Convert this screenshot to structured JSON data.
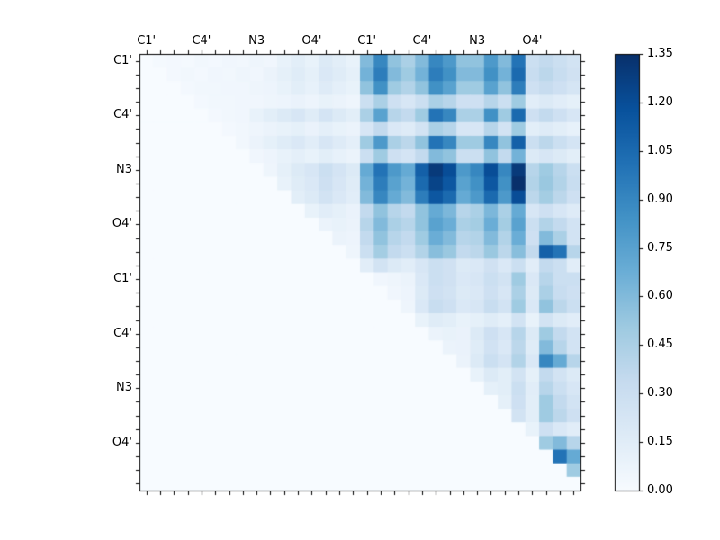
{
  "figure": {
    "background": "#ffffff",
    "border_color": "#000000"
  },
  "chart_data": {
    "type": "heatmap",
    "title": "",
    "xlabel": "",
    "ylabel": "",
    "x_axis_side": "top",
    "y_axis_side": "left",
    "n_rows": 32,
    "n_cols": 32,
    "x_tick_labels": [
      "C1'",
      "C4'",
      "N3",
      "O4'",
      "C1'",
      "C4'",
      "N3",
      "O4'"
    ],
    "y_tick_labels": [
      "C1'",
      "C4'",
      "N3",
      "O4'",
      "C1'",
      "C4'",
      "N3",
      "O4'"
    ],
    "labeled_cells": [
      0,
      4,
      8,
      12,
      16,
      20,
      24,
      28
    ],
    "vmin": 0,
    "vmax": 1.35,
    "colormap": {
      "name": "Blues",
      "stops": [
        [
          0.0,
          "#f7fbff"
        ],
        [
          0.125,
          "#deebf7"
        ],
        [
          0.25,
          "#c6dbef"
        ],
        [
          0.375,
          "#9ecae1"
        ],
        [
          0.5,
          "#6baed6"
        ],
        [
          0.625,
          "#4292c6"
        ],
        [
          0.75,
          "#2171b5"
        ],
        [
          0.875,
          "#08519c"
        ],
        [
          1.0,
          "#08306b"
        ]
      ]
    },
    "colorbar": {
      "tick_values": [
        0,
        0.15,
        0.3,
        0.45,
        0.6,
        0.75,
        0.9,
        1.05,
        1.2,
        1.35
      ],
      "tick_labels": [
        "0.00",
        "0.15",
        "0.30",
        "0.45",
        "0.60",
        "0.75",
        "0.90",
        "1.05",
        "1.20",
        "1.35"
      ]
    },
    "matrix": [
      [
        0,
        0.02,
        0.03,
        0.02,
        0.04,
        0.03,
        0.05,
        0.04,
        0.06,
        0.05,
        0.1,
        0.14,
        0.1,
        0.18,
        0.14,
        0.1,
        0.6,
        0.9,
        0.55,
        0.45,
        0.6,
        0.9,
        0.8,
        0.55,
        0.55,
        0.8,
        0.6,
        1.0,
        0.3,
        0.35,
        0.3,
        0.25
      ],
      [
        0,
        0,
        0.03,
        0.04,
        0.03,
        0.05,
        0.04,
        0.06,
        0.05,
        0.08,
        0.12,
        0.16,
        0.12,
        0.2,
        0.16,
        0.12,
        0.65,
        0.95,
        0.6,
        0.5,
        0.65,
        0.95,
        0.85,
        0.6,
        0.6,
        0.85,
        0.65,
        1.05,
        0.32,
        0.38,
        0.32,
        0.27
      ],
      [
        0,
        0,
        0,
        0.03,
        0.04,
        0.04,
        0.05,
        0.05,
        0.06,
        0.07,
        0.1,
        0.14,
        0.11,
        0.17,
        0.13,
        0.1,
        0.55,
        0.85,
        0.5,
        0.42,
        0.55,
        0.85,
        0.75,
        0.5,
        0.5,
        0.75,
        0.55,
        0.95,
        0.28,
        0.33,
        0.28,
        0.23
      ],
      [
        0,
        0,
        0,
        0,
        0.03,
        0.04,
        0.04,
        0.05,
        0.05,
        0.06,
        0.07,
        0.09,
        0.07,
        0.1,
        0.08,
        0.06,
        0.3,
        0.45,
        0.28,
        0.22,
        0.3,
        0.45,
        0.4,
        0.28,
        0.28,
        0.4,
        0.3,
        0.5,
        0.15,
        0.18,
        0.15,
        0.12
      ],
      [
        0,
        0,
        0,
        0,
        0,
        0.03,
        0.04,
        0.05,
        0.1,
        0.14,
        0.18,
        0.22,
        0.16,
        0.24,
        0.18,
        0.14,
        0.45,
        0.75,
        0.4,
        0.35,
        0.5,
        1.0,
        0.9,
        0.45,
        0.45,
        0.85,
        0.5,
        1.05,
        0.28,
        0.35,
        0.28,
        0.22
      ],
      [
        0,
        0,
        0,
        0,
        0,
        0,
        0.03,
        0.04,
        0.06,
        0.08,
        0.1,
        0.12,
        0.09,
        0.13,
        0.1,
        0.08,
        0.22,
        0.35,
        0.2,
        0.17,
        0.25,
        0.45,
        0.4,
        0.22,
        0.22,
        0.4,
        0.25,
        0.5,
        0.14,
        0.17,
        0.14,
        0.11
      ],
      [
        0,
        0,
        0,
        0,
        0,
        0,
        0,
        0.04,
        0.08,
        0.12,
        0.16,
        0.2,
        0.15,
        0.22,
        0.17,
        0.13,
        0.5,
        0.8,
        0.45,
        0.38,
        0.55,
        1.0,
        0.9,
        0.5,
        0.5,
        0.9,
        0.55,
        1.1,
        0.3,
        0.38,
        0.3,
        0.24
      ],
      [
        0,
        0,
        0,
        0,
        0,
        0,
        0,
        0,
        0.05,
        0.07,
        0.1,
        0.13,
        0.1,
        0.14,
        0.11,
        0.08,
        0.3,
        0.5,
        0.28,
        0.24,
        0.35,
        0.6,
        0.55,
        0.3,
        0.3,
        0.55,
        0.35,
        0.65,
        0.18,
        0.22,
        0.18,
        0.14
      ],
      [
        0,
        0,
        0,
        0,
        0,
        0,
        0,
        0,
        0,
        0.06,
        0.12,
        0.18,
        0.22,
        0.3,
        0.24,
        0.18,
        0.7,
        1.0,
        0.8,
        0.7,
        1.1,
        1.3,
        1.2,
        0.8,
        0.9,
        1.2,
        0.9,
        1.3,
        0.4,
        0.5,
        0.4,
        0.3
      ],
      [
        0,
        0,
        0,
        0,
        0,
        0,
        0,
        0,
        0,
        0,
        0.1,
        0.16,
        0.2,
        0.28,
        0.22,
        0.16,
        0.65,
        0.95,
        0.75,
        0.65,
        1.05,
        1.25,
        1.15,
        0.75,
        0.85,
        1.15,
        0.85,
        1.35,
        0.42,
        0.52,
        0.42,
        0.32
      ],
      [
        0,
        0,
        0,
        0,
        0,
        0,
        0,
        0,
        0,
        0,
        0,
        0.14,
        0.18,
        0.25,
        0.2,
        0.15,
        0.6,
        0.9,
        0.7,
        0.6,
        0.95,
        1.15,
        1.05,
        0.7,
        0.8,
        1.05,
        0.8,
        1.2,
        0.38,
        0.48,
        0.38,
        0.28
      ],
      [
        0,
        0,
        0,
        0,
        0,
        0,
        0,
        0,
        0,
        0,
        0,
        0,
        0.1,
        0.15,
        0.12,
        0.09,
        0.35,
        0.55,
        0.4,
        0.35,
        0.55,
        0.7,
        0.62,
        0.4,
        0.45,
        0.62,
        0.45,
        0.7,
        0.22,
        0.28,
        0.22,
        0.17
      ],
      [
        0,
        0,
        0,
        0,
        0,
        0,
        0,
        0,
        0,
        0,
        0,
        0,
        0,
        0.08,
        0.1,
        0.08,
        0.4,
        0.6,
        0.45,
        0.4,
        0.55,
        0.75,
        0.68,
        0.45,
        0.48,
        0.68,
        0.48,
        0.75,
        0.3,
        0.42,
        0.35,
        0.25
      ],
      [
        0,
        0,
        0,
        0,
        0,
        0,
        0,
        0,
        0,
        0,
        0,
        0,
        0,
        0,
        0.08,
        0.07,
        0.35,
        0.55,
        0.4,
        0.35,
        0.5,
        0.68,
        0.6,
        0.4,
        0.42,
        0.6,
        0.42,
        0.68,
        0.28,
        0.6,
        0.45,
        0.25
      ],
      [
        0,
        0,
        0,
        0,
        0,
        0,
        0,
        0,
        0,
        0,
        0,
        0,
        0,
        0,
        0,
        0.06,
        0.3,
        0.48,
        0.35,
        0.3,
        0.42,
        0.58,
        0.52,
        0.35,
        0.38,
        0.52,
        0.38,
        0.58,
        0.35,
        1.1,
        1.0,
        0.4
      ],
      [
        0,
        0,
        0,
        0,
        0,
        0,
        0,
        0,
        0,
        0,
        0,
        0,
        0,
        0,
        0,
        0,
        0.15,
        0.25,
        0.18,
        0.15,
        0.22,
        0.3,
        0.27,
        0.18,
        0.2,
        0.27,
        0.2,
        0.3,
        0.15,
        0.35,
        0.3,
        0.15
      ],
      [
        0,
        0,
        0,
        0,
        0,
        0,
        0,
        0,
        0,
        0,
        0,
        0,
        0,
        0,
        0,
        0,
        0,
        0.05,
        0.06,
        0.08,
        0.2,
        0.3,
        0.27,
        0.2,
        0.22,
        0.3,
        0.25,
        0.5,
        0.2,
        0.4,
        0.3,
        0.3
      ],
      [
        0,
        0,
        0,
        0,
        0,
        0,
        0,
        0,
        0,
        0,
        0,
        0,
        0,
        0,
        0,
        0,
        0,
        0,
        0.05,
        0.07,
        0.18,
        0.28,
        0.25,
        0.18,
        0.2,
        0.28,
        0.22,
        0.45,
        0.18,
        0.45,
        0.32,
        0.28
      ],
      [
        0,
        0,
        0,
        0,
        0,
        0,
        0,
        0,
        0,
        0,
        0,
        0,
        0,
        0,
        0,
        0,
        0,
        0,
        0,
        0.06,
        0.2,
        0.32,
        0.28,
        0.2,
        0.22,
        0.32,
        0.25,
        0.5,
        0.2,
        0.55,
        0.38,
        0.3
      ],
      [
        0,
        0,
        0,
        0,
        0,
        0,
        0,
        0,
        0,
        0,
        0,
        0,
        0,
        0,
        0,
        0,
        0,
        0,
        0,
        0,
        0.1,
        0.16,
        0.14,
        0.1,
        0.12,
        0.16,
        0.13,
        0.25,
        0.1,
        0.25,
        0.18,
        0.15
      ],
      [
        0,
        0,
        0,
        0,
        0,
        0,
        0,
        0,
        0,
        0,
        0,
        0,
        0,
        0,
        0,
        0,
        0,
        0,
        0,
        0,
        0,
        0.08,
        0.1,
        0.09,
        0.18,
        0.28,
        0.22,
        0.4,
        0.18,
        0.5,
        0.35,
        0.25
      ],
      [
        0,
        0,
        0,
        0,
        0,
        0,
        0,
        0,
        0,
        0,
        0,
        0,
        0,
        0,
        0,
        0,
        0,
        0,
        0,
        0,
        0,
        0,
        0.08,
        0.09,
        0.16,
        0.26,
        0.2,
        0.38,
        0.16,
        0.6,
        0.4,
        0.25
      ],
      [
        0,
        0,
        0,
        0,
        0,
        0,
        0,
        0,
        0,
        0,
        0,
        0,
        0,
        0,
        0,
        0,
        0,
        0,
        0,
        0,
        0,
        0,
        0,
        0.08,
        0.18,
        0.3,
        0.24,
        0.42,
        0.2,
        0.9,
        0.7,
        0.4
      ],
      [
        0,
        0,
        0,
        0,
        0,
        0,
        0,
        0,
        0,
        0,
        0,
        0,
        0,
        0,
        0,
        0,
        0,
        0,
        0,
        0,
        0,
        0,
        0,
        0,
        0.1,
        0.18,
        0.14,
        0.25,
        0.12,
        0.35,
        0.25,
        0.18
      ],
      [
        0,
        0,
        0,
        0,
        0,
        0,
        0,
        0,
        0,
        0,
        0,
        0,
        0,
        0,
        0,
        0,
        0,
        0,
        0,
        0,
        0,
        0,
        0,
        0,
        0,
        0.12,
        0.14,
        0.3,
        0.15,
        0.4,
        0.3,
        0.22
      ],
      [
        0,
        0,
        0,
        0,
        0,
        0,
        0,
        0,
        0,
        0,
        0,
        0,
        0,
        0,
        0,
        0,
        0,
        0,
        0,
        0,
        0,
        0,
        0,
        0,
        0,
        0,
        0.12,
        0.28,
        0.14,
        0.5,
        0.35,
        0.25
      ],
      [
        0,
        0,
        0,
        0,
        0,
        0,
        0,
        0,
        0,
        0,
        0,
        0,
        0,
        0,
        0,
        0,
        0,
        0,
        0,
        0,
        0,
        0,
        0,
        0,
        0,
        0,
        0,
        0.25,
        0.14,
        0.5,
        0.38,
        0.28
      ],
      [
        0,
        0,
        0,
        0,
        0,
        0,
        0,
        0,
        0,
        0,
        0,
        0,
        0,
        0,
        0,
        0,
        0,
        0,
        0,
        0,
        0,
        0,
        0,
        0,
        0,
        0,
        0,
        0,
        0.1,
        0.28,
        0.2,
        0.15
      ],
      [
        0,
        0,
        0,
        0,
        0,
        0,
        0,
        0,
        0,
        0,
        0,
        0,
        0,
        0,
        0,
        0,
        0,
        0,
        0,
        0,
        0,
        0,
        0,
        0,
        0,
        0,
        0,
        0,
        0,
        0.5,
        0.6,
        0.4
      ],
      [
        0,
        0,
        0,
        0,
        0,
        0,
        0,
        0,
        0,
        0,
        0,
        0,
        0,
        0,
        0,
        0,
        0,
        0,
        0,
        0,
        0,
        0,
        0,
        0,
        0,
        0,
        0,
        0,
        0,
        0,
        1.0,
        0.7
      ],
      [
        0,
        0,
        0,
        0,
        0,
        0,
        0,
        0,
        0,
        0,
        0,
        0,
        0,
        0,
        0,
        0,
        0,
        0,
        0,
        0,
        0,
        0,
        0,
        0,
        0,
        0,
        0,
        0,
        0,
        0,
        0,
        0.5
      ],
      [
        0,
        0,
        0,
        0,
        0,
        0,
        0,
        0,
        0,
        0,
        0,
        0,
        0,
        0,
        0,
        0,
        0,
        0,
        0,
        0,
        0,
        0,
        0,
        0,
        0,
        0,
        0,
        0,
        0,
        0,
        0,
        0
      ]
    ]
  }
}
